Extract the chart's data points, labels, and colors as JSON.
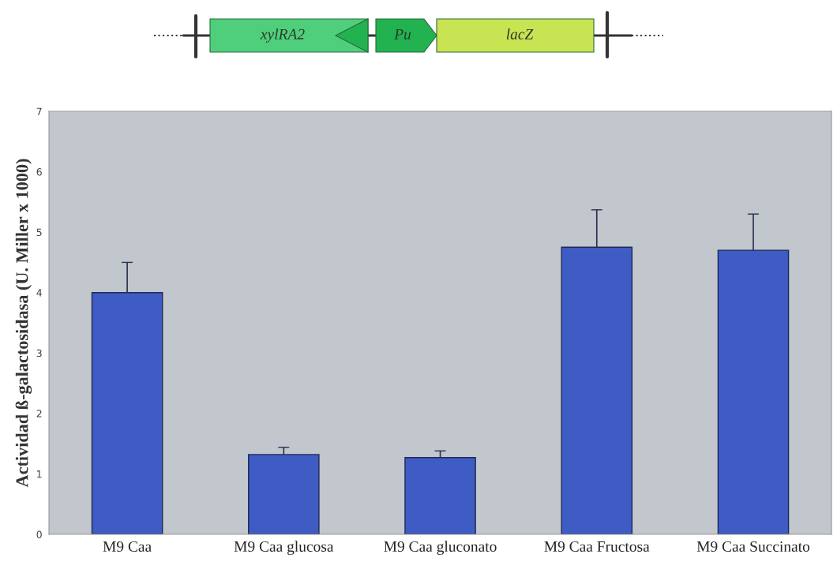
{
  "chart_data": {
    "type": "bar",
    "ylabel": "Actividad ß-galactosidasa (U. Miller x 1000)",
    "categories": [
      "M9 Caa",
      "M9 Caa glucosa",
      "M9 Caa gluconato",
      "M9 Caa Fructosa",
      "M9 Caa Succinato"
    ],
    "values": [
      4.0,
      1.32,
      1.27,
      4.75,
      4.7
    ],
    "errors": [
      0.5,
      0.12,
      0.11,
      0.62,
      0.6
    ],
    "color": "#3f5bc4",
    "ylim": [
      0,
      7
    ],
    "yticks": [
      0,
      1,
      2,
      3,
      4,
      5,
      6,
      7
    ],
    "grid": false,
    "annotations": [
      "xylRA2",
      "Pu",
      "lacZ"
    ]
  }
}
